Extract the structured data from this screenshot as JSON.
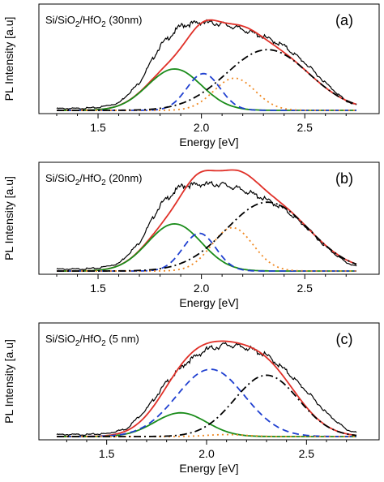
{
  "chart_data": [
    {
      "type": "line",
      "panel_label": "(a)",
      "sample_label": {
        "prefix": "Si/SiO",
        "sub1": "2",
        "mid": "/HfO",
        "sub2": "2",
        "suffix": " (30nm)"
      },
      "xlabel": "Energy [eV]",
      "ylabel": "PL Intensity [a.u]",
      "xlim": [
        1.2,
        2.8
      ],
      "ylim": [
        0,
        1.05
      ],
      "xticks": [
        1.5,
        2.0,
        2.5
      ],
      "xtick_labels": [
        "1.5",
        "2.0",
        "2.5"
      ],
      "grid": false,
      "legend": "none",
      "series": [
        {
          "style": "measured",
          "color": "#000000",
          "dash": "none",
          "x": [
            1.3,
            1.4,
            1.5,
            1.6,
            1.7,
            1.8,
            1.9,
            2.0,
            2.1,
            2.2,
            2.3,
            2.4,
            2.5,
            2.6,
            2.7,
            2.75
          ],
          "values": [
            0.02,
            0.02,
            0.03,
            0.08,
            0.3,
            0.7,
            0.92,
            0.96,
            0.94,
            0.88,
            0.8,
            0.7,
            0.52,
            0.3,
            0.1,
            0.06
          ]
        },
        {
          "style": "fit",
          "color": "#e03028",
          "dash": "none",
          "components": [
            0,
            1,
            2,
            3
          ]
        },
        {
          "style": "component",
          "color": "#1a8c1a",
          "dash": "none",
          "center": 1.87,
          "amplitude": 0.45,
          "sigma": 0.13
        },
        {
          "style": "component",
          "color": "#1f3fd0",
          "dash": "8 5",
          "center": 2.01,
          "amplitude": 0.4,
          "sigma": 0.08
        },
        {
          "style": "component",
          "color": "#f08a24",
          "dash": "2 4",
          "center": 2.16,
          "amplitude": 0.35,
          "sigma": 0.1
        },
        {
          "style": "component",
          "color": "#000000",
          "dash": "9 4 2 4",
          "center": 2.32,
          "amplitude": 0.66,
          "sigma": 0.2
        }
      ]
    },
    {
      "type": "line",
      "panel_label": "(b)",
      "sample_label": {
        "prefix": "Si/SiO",
        "sub1": "2",
        "mid": "/HfO",
        "sub2": "2",
        "suffix": " (20nm)"
      },
      "xlabel": "Energy [eV]",
      "ylabel": "PL Intensity [a.u]",
      "xlim": [
        1.2,
        2.8
      ],
      "ylim": [
        0,
        1.05
      ],
      "xticks": [
        1.5,
        2.0,
        2.5
      ],
      "xtick_labels": [
        "1.5",
        "2.0",
        "2.5"
      ],
      "grid": false,
      "legend": "none",
      "series": [
        {
          "style": "measured",
          "color": "#000000",
          "dash": "none",
          "x": [
            1.3,
            1.4,
            1.5,
            1.6,
            1.7,
            1.8,
            1.9,
            2.0,
            2.1,
            2.2,
            2.3,
            2.4,
            2.5,
            2.6,
            2.7,
            2.75
          ],
          "values": [
            0.02,
            0.02,
            0.03,
            0.08,
            0.3,
            0.7,
            0.9,
            0.92,
            0.92,
            0.86,
            0.77,
            0.66,
            0.48,
            0.26,
            0.09,
            0.05
          ]
        },
        {
          "style": "fit",
          "color": "#e03028",
          "dash": "none",
          "components": [
            0,
            1,
            2,
            3
          ]
        },
        {
          "style": "component",
          "color": "#1a8c1a",
          "dash": "none",
          "center": 1.87,
          "amplitude": 0.5,
          "sigma": 0.13
        },
        {
          "style": "component",
          "color": "#1f3fd0",
          "dash": "8 5",
          "center": 1.99,
          "amplitude": 0.4,
          "sigma": 0.08
        },
        {
          "style": "component",
          "color": "#f08a24",
          "dash": "2 4",
          "center": 2.15,
          "amplitude": 0.46,
          "sigma": 0.1
        },
        {
          "style": "component",
          "color": "#000000",
          "dash": "9 4 2 4",
          "center": 2.32,
          "amplitude": 0.73,
          "sigma": 0.2
        }
      ]
    },
    {
      "type": "line",
      "panel_label": "(c)",
      "sample_label": {
        "prefix": "Si/SiO",
        "sub1": "2",
        "mid": "/HfO",
        "sub2": "2",
        "suffix": " (5 nm)"
      },
      "xlabel": "Energy [eV]",
      "ylabel": "PL Intensity [a.u]",
      "xlim": [
        1.2,
        2.8
      ],
      "ylim": [
        0,
        1.05
      ],
      "xticks": [
        1.5,
        2.0,
        2.5
      ],
      "xtick_labels": [
        "1.5",
        "2.0",
        "2.5"
      ],
      "grid": false,
      "legend": "none",
      "series": [
        {
          "style": "measured",
          "color": "#000000",
          "dash": "none",
          "x": [
            1.3,
            1.4,
            1.5,
            1.6,
            1.7,
            1.8,
            1.9,
            2.0,
            2.1,
            2.2,
            2.3,
            2.4,
            2.5,
            2.6,
            2.7,
            2.75
          ],
          "values": [
            0.02,
            0.02,
            0.03,
            0.08,
            0.28,
            0.55,
            0.75,
            0.88,
            0.93,
            0.9,
            0.82,
            0.66,
            0.46,
            0.24,
            0.07,
            0.04
          ]
        },
        {
          "style": "fit",
          "color": "#e03028",
          "dash": "none",
          "components": [
            0,
            1,
            2,
            3
          ]
        },
        {
          "style": "component",
          "color": "#1a8c1a",
          "dash": "none",
          "center": 1.87,
          "amplitude": 0.24,
          "sigma": 0.13
        },
        {
          "style": "component",
          "color": "#1f3fd0",
          "dash": "8 5",
          "center": 2.02,
          "amplitude": 0.68,
          "sigma": 0.17
        },
        {
          "style": "component",
          "color": "#f08a24",
          "dash": "2 4",
          "center": 2.1,
          "amplitude": 0.02,
          "sigma": 0.1
        },
        {
          "style": "component",
          "color": "#000000",
          "dash": "9 4 2 4",
          "center": 2.3,
          "amplitude": 0.62,
          "sigma": 0.16
        }
      ]
    }
  ]
}
